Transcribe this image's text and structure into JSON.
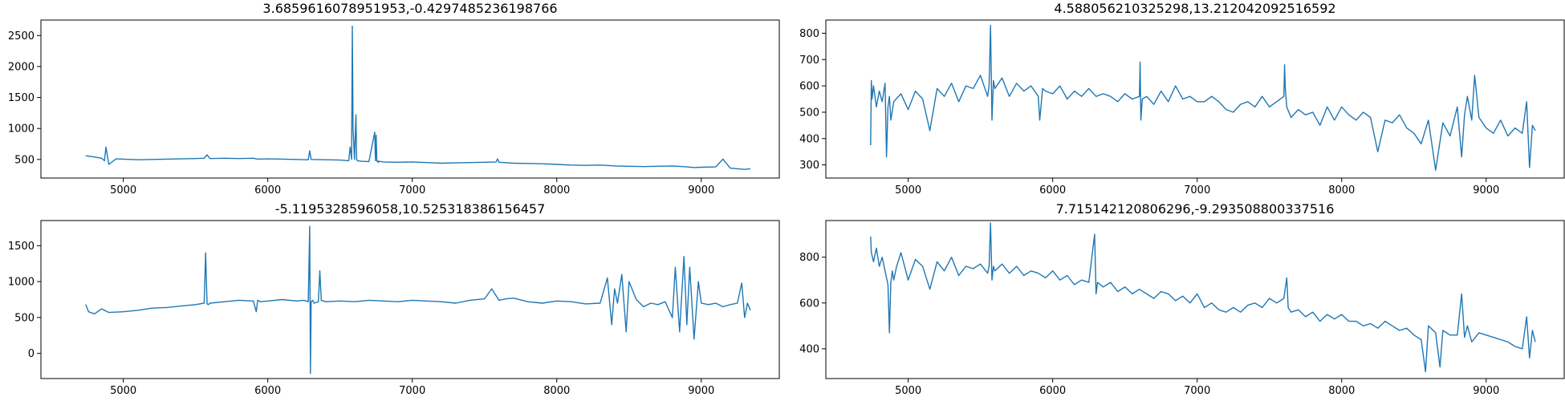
{
  "figure": {
    "background": "#ffffff",
    "line_color": "#1f77b4"
  },
  "chart_data": [
    {
      "type": "line",
      "title": "3.6859616078951953,-0.4297485236198766",
      "xlabel": "",
      "ylabel": "",
      "xlim": [
        4430,
        9540
      ],
      "ylim": [
        200,
        2750
      ],
      "xticks": [
        5000,
        6000,
        7000,
        8000,
        9000
      ],
      "yticks": [
        500,
        1000,
        1500,
        2000,
        2500
      ],
      "grid": false,
      "series": [
        {
          "color": "#1f77b4",
          "x": [
            4740,
            4800,
            4850,
            4870,
            4880,
            4900,
            4950,
            5000,
            5100,
            5200,
            5300,
            5400,
            5500,
            5560,
            5580,
            5600,
            5700,
            5800,
            5900,
            5930,
            6000,
            6100,
            6200,
            6280,
            6290,
            6300,
            6400,
            6500,
            6560,
            6570,
            6580,
            6585,
            6590,
            6600,
            6610,
            6615,
            6620,
            6650,
            6700,
            6740,
            6745,
            6750,
            6755,
            6760,
            6765,
            6770,
            6800,
            6900,
            7000,
            7100,
            7200,
            7300,
            7400,
            7500,
            7580,
            7590,
            7600,
            7700,
            7800,
            7900,
            8000,
            8100,
            8200,
            8300,
            8400,
            8500,
            8600,
            8700,
            8800,
            8900,
            8950,
            9000,
            9100,
            9150,
            9200,
            9250,
            9300,
            9340
          ],
          "y": [
            560,
            540,
            520,
            480,
            700,
            420,
            510,
            505,
            495,
            500,
            505,
            510,
            515,
            520,
            575,
            515,
            520,
            515,
            520,
            505,
            510,
            505,
            500,
            495,
            640,
            500,
            495,
            490,
            480,
            700,
            500,
            2650,
            1000,
            500,
            1220,
            500,
            480,
            470,
            465,
            940,
            480,
            890,
            470,
            480,
            450,
            470,
            460,
            455,
            460,
            450,
            440,
            445,
            450,
            455,
            460,
            510,
            455,
            440,
            435,
            430,
            420,
            410,
            405,
            410,
            395,
            390,
            385,
            390,
            395,
            380,
            370,
            375,
            380,
            505,
            360,
            350,
            340,
            350
          ]
        }
      ]
    },
    {
      "type": "line",
      "title": "4.588056210325298,13.212042092516592",
      "xlabel": "",
      "ylabel": "",
      "xlim": [
        4430,
        9540
      ],
      "ylim": [
        250,
        850
      ],
      "xticks": [
        5000,
        6000,
        7000,
        8000,
        9000
      ],
      "yticks": [
        300,
        400,
        500,
        600,
        700,
        800
      ],
      "grid": false,
      "series": [
        {
          "color": "#1f77b4",
          "x": [
            4740,
            4745,
            4750,
            4760,
            4780,
            4800,
            4820,
            4840,
            4850,
            4860,
            4870,
            4880,
            4900,
            4950,
            5000,
            5050,
            5100,
            5150,
            5200,
            5250,
            5300,
            5350,
            5400,
            5450,
            5500,
            5550,
            5560,
            5570,
            5580,
            5590,
            5600,
            5650,
            5700,
            5750,
            5800,
            5850,
            5900,
            5910,
            5920,
            5930,
            5950,
            6000,
            6050,
            6100,
            6150,
            6200,
            6250,
            6300,
            6350,
            6400,
            6450,
            6500,
            6550,
            6600,
            6605,
            6610,
            6620,
            6650,
            6700,
            6750,
            6800,
            6850,
            6900,
            6950,
            7000,
            7050,
            7100,
            7150,
            7200,
            7250,
            7300,
            7350,
            7400,
            7450,
            7500,
            7550,
            7600,
            7605,
            7610,
            7620,
            7650,
            7700,
            7750,
            7800,
            7850,
            7900,
            7950,
            8000,
            8050,
            8100,
            8150,
            8200,
            8250,
            8300,
            8350,
            8400,
            8450,
            8500,
            8550,
            8600,
            8650,
            8700,
            8750,
            8800,
            8830,
            8850,
            8870,
            8900,
            8920,
            8950,
            9000,
            9050,
            9100,
            9150,
            9200,
            9250,
            9280,
            9300,
            9320,
            9340
          ],
          "y": [
            375,
            620,
            550,
            600,
            520,
            580,
            540,
            610,
            330,
            520,
            560,
            470,
            540,
            570,
            510,
            580,
            550,
            430,
            590,
            560,
            610,
            540,
            600,
            590,
            640,
            560,
            600,
            830,
            470,
            620,
            590,
            630,
            560,
            610,
            580,
            600,
            560,
            470,
            530,
            590,
            580,
            570,
            600,
            550,
            580,
            560,
            590,
            560,
            570,
            560,
            540,
            570,
            550,
            560,
            690,
            470,
            550,
            560,
            530,
            580,
            540,
            600,
            550,
            560,
            540,
            540,
            560,
            540,
            510,
            500,
            530,
            540,
            520,
            560,
            520,
            540,
            560,
            680,
            590,
            520,
            480,
            510,
            490,
            500,
            450,
            520,
            470,
            520,
            490,
            470,
            500,
            480,
            350,
            470,
            460,
            490,
            440,
            420,
            380,
            470,
            280,
            460,
            410,
            520,
            330,
            490,
            560,
            470,
            640,
            480,
            440,
            420,
            470,
            410,
            440,
            420,
            540,
            290,
            450,
            430
          ]
        }
      ]
    },
    {
      "type": "line",
      "title": "-5.1195328596058,10.525318386156457",
      "xlabel": "",
      "ylabel": "",
      "xlim": [
        4430,
        9540
      ],
      "ylim": [
        -350,
        1850
      ],
      "xticks": [
        5000,
        6000,
        7000,
        8000,
        9000
      ],
      "yticks": [
        0,
        500,
        1000,
        1500
      ],
      "grid": false,
      "series": [
        {
          "color": "#1f77b4",
          "x": [
            4740,
            4760,
            4800,
            4850,
            4900,
            5000,
            5100,
            5200,
            5300,
            5400,
            5500,
            5560,
            5570,
            5580,
            5590,
            5600,
            5700,
            5800,
            5900,
            5920,
            5930,
            5950,
            6000,
            6100,
            6200,
            6250,
            6280,
            6290,
            6295,
            6300,
            6310,
            6320,
            6350,
            6360,
            6370,
            6400,
            6500,
            6600,
            6700,
            6800,
            6900,
            7000,
            7100,
            7200,
            7300,
            7400,
            7500,
            7550,
            7600,
            7650,
            7700,
            7800,
            7900,
            8000,
            8100,
            8200,
            8300,
            8350,
            8380,
            8400,
            8420,
            8450,
            8480,
            8500,
            8550,
            8600,
            8650,
            8700,
            8750,
            8800,
            8820,
            8850,
            8880,
            8900,
            8920,
            8950,
            8980,
            9000,
            9050,
            9100,
            9150,
            9200,
            9250,
            9280,
            9300,
            9320,
            9340
          ],
          "y": [
            680,
            580,
            550,
            620,
            570,
            580,
            600,
            630,
            640,
            660,
            680,
            700,
            1400,
            690,
            680,
            700,
            720,
            740,
            730,
            580,
            740,
            720,
            730,
            750,
            730,
            740,
            720,
            1770,
            -280,
            720,
            740,
            700,
            720,
            1150,
            740,
            720,
            730,
            720,
            740,
            730,
            720,
            740,
            730,
            720,
            700,
            740,
            760,
            900,
            740,
            760,
            770,
            720,
            700,
            730,
            720,
            690,
            700,
            1050,
            400,
            900,
            700,
            1100,
            300,
            1000,
            750,
            650,
            700,
            680,
            720,
            500,
            1200,
            300,
            1350,
            400,
            1200,
            200,
            1000,
            700,
            680,
            700,
            650,
            680,
            700,
            980,
            500,
            700,
            600
          ]
        }
      ]
    },
    {
      "type": "line",
      "title": "7.715142120806296,-9.293508800337516",
      "xlabel": "",
      "ylabel": "",
      "xlim": [
        4430,
        9540
      ],
      "ylim": [
        270,
        960
      ],
      "xticks": [
        5000,
        6000,
        7000,
        8000,
        9000
      ],
      "yticks": [
        400,
        600,
        800
      ],
      "grid": false,
      "series": [
        {
          "color": "#1f77b4",
          "x": [
            4740,
            4745,
            4760,
            4780,
            4800,
            4820,
            4840,
            4860,
            4870,
            4880,
            4890,
            4900,
            4920,
            4950,
            5000,
            5050,
            5100,
            5150,
            5200,
            5250,
            5300,
            5350,
            5400,
            5450,
            5500,
            5550,
            5560,
            5570,
            5580,
            5590,
            5600,
            5650,
            5700,
            5750,
            5800,
            5850,
            5900,
            5950,
            6000,
            6050,
            6100,
            6150,
            6200,
            6250,
            6290,
            6300,
            6310,
            6350,
            6400,
            6450,
            6500,
            6550,
            6600,
            6650,
            6700,
            6750,
            6800,
            6850,
            6900,
            6950,
            7000,
            7050,
            7100,
            7150,
            7200,
            7250,
            7300,
            7350,
            7400,
            7450,
            7500,
            7550,
            7600,
            7620,
            7630,
            7650,
            7700,
            7750,
            7800,
            7850,
            7900,
            7950,
            8000,
            8050,
            8100,
            8150,
            8200,
            8250,
            8300,
            8350,
            8400,
            8450,
            8500,
            8550,
            8580,
            8600,
            8650,
            8680,
            8700,
            8750,
            8800,
            8830,
            8850,
            8870,
            8900,
            8950,
            9000,
            9050,
            9100,
            9150,
            9200,
            9250,
            9280,
            9300,
            9320,
            9340
          ],
          "y": [
            890,
            820,
            780,
            840,
            760,
            800,
            740,
            680,
            470,
            690,
            740,
            700,
            760,
            820,
            700,
            790,
            760,
            660,
            780,
            740,
            800,
            720,
            760,
            750,
            770,
            730,
            760,
            950,
            700,
            760,
            740,
            770,
            730,
            760,
            720,
            740,
            730,
            710,
            740,
            700,
            720,
            680,
            700,
            690,
            900,
            640,
            690,
            670,
            690,
            650,
            670,
            640,
            660,
            640,
            620,
            650,
            640,
            610,
            630,
            600,
            640,
            580,
            600,
            570,
            560,
            580,
            560,
            590,
            600,
            580,
            620,
            600,
            620,
            710,
            580,
            560,
            570,
            540,
            560,
            520,
            550,
            530,
            550,
            520,
            520,
            500,
            510,
            490,
            520,
            500,
            480,
            490,
            460,
            440,
            300,
            500,
            470,
            320,
            480,
            460,
            460,
            640,
            450,
            500,
            430,
            470,
            460,
            450,
            440,
            430,
            410,
            400,
            540,
            360,
            480,
            430
          ]
        }
      ]
    }
  ]
}
